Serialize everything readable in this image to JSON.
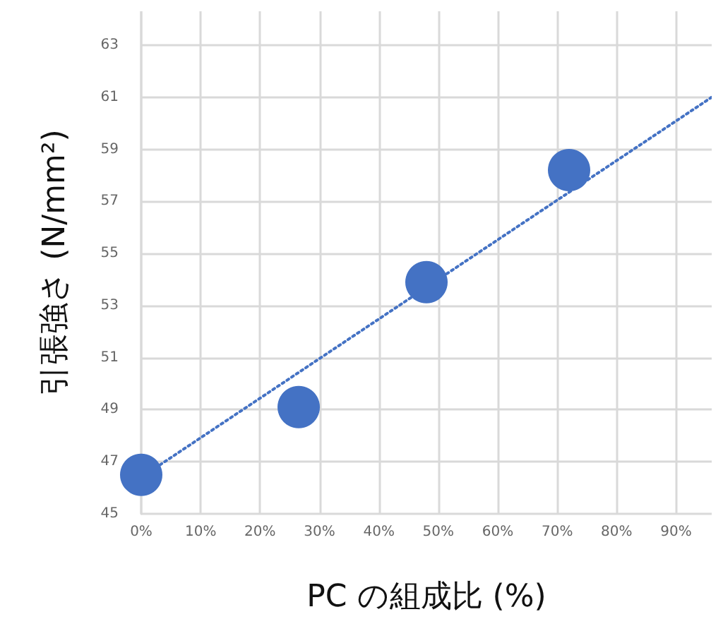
{
  "chart_data": {
    "type": "scatter",
    "xlabel": "PC の組成比 (%)",
    "ylabel": "引張強さ (N/mm²)",
    "xlim": [
      0,
      96
    ],
    "ylim": [
      45,
      64.3
    ],
    "xticks": [
      {
        "value": 0,
        "label": "0%"
      },
      {
        "value": 10,
        "label": "10%"
      },
      {
        "value": 20,
        "label": "20%"
      },
      {
        "value": 30,
        "label": "30%"
      },
      {
        "value": 40,
        "label": "40%"
      },
      {
        "value": 50,
        "label": "50%"
      },
      {
        "value": 60,
        "label": "60%"
      },
      {
        "value": 70,
        "label": "70%"
      },
      {
        "value": 80,
        "label": "80%"
      },
      {
        "value": 90,
        "label": "90%"
      }
    ],
    "yticks": [
      45,
      47,
      49,
      51,
      53,
      55,
      57,
      59,
      61,
      63
    ],
    "grid": true,
    "marker": "circle",
    "series": [
      {
        "color": "#4472c4",
        "x": [
          0,
          26.5,
          48,
          72
        ],
        "values": [
          46.5,
          49.1,
          53.9,
          58.2
        ]
      },
      {
        "type": "line",
        "color": "#4472c4",
        "x": [
          0,
          96
        ],
        "values": [
          46.4,
          61.0
        ],
        "marker": "none",
        "line_style": "dotted"
      }
    ]
  }
}
